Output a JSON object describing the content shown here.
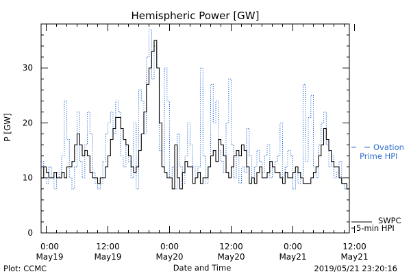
{
  "chart_data": {
    "type": "line",
    "title": "Hemispheric Power [GW]",
    "xlabel": "Date and Time",
    "ylabel": "P [GW]",
    "ylim": [
      0,
      38
    ],
    "xlim_hours": [
      -1,
      59
    ],
    "yticks": [
      0,
      10,
      20,
      30
    ],
    "xticks": [
      {
        "hour": 0,
        "time": "0:00",
        "date": "May19"
      },
      {
        "hour": 12,
        "time": "12:00",
        "date": "May19"
      },
      {
        "hour": 24,
        "time": "0:00",
        "date": "May20"
      },
      {
        "hour": 36,
        "time": "12:00",
        "date": "May20"
      },
      {
        "hour": 48,
        "time": "0:00",
        "date": "May21"
      },
      {
        "hour": 60,
        "time": "12:00",
        "date": "May21"
      }
    ],
    "series": [
      {
        "name": "SWPC 5-min HPI",
        "legend_lines": [
          "SWPC",
          "5-min HPI"
        ],
        "color": "#000000",
        "style": "solid",
        "x": [
          -1,
          -0.5,
          0,
          0.5,
          1,
          1.5,
          2,
          2.5,
          3,
          3.5,
          4,
          4.5,
          5,
          5.5,
          6,
          6.5,
          7,
          7.5,
          8,
          8.5,
          9,
          9.5,
          10,
          10.5,
          11,
          11.5,
          12,
          12.5,
          13,
          13.5,
          14,
          14.5,
          15,
          15.5,
          16,
          16.5,
          17,
          17.5,
          18,
          18.5,
          19,
          19.5,
          20,
          20.5,
          21,
          21.5,
          22,
          22.5,
          23,
          23.5,
          24,
          24.5,
          25,
          25.5,
          26,
          26.5,
          27,
          27.5,
          28,
          28.5,
          29,
          29.5,
          30,
          30.5,
          31,
          31.5,
          32,
          32.5,
          33,
          33.5,
          34,
          34.5,
          35,
          35.5,
          36,
          36.5,
          37,
          37.5,
          38,
          38.5,
          39,
          39.5,
          40,
          40.5,
          41,
          41.5,
          42,
          42.5,
          43,
          43.5,
          44,
          44.5,
          45,
          45.5,
          46,
          46.5,
          47,
          47.5,
          48,
          48.5,
          49,
          49.5,
          50,
          50.5,
          51,
          51.5,
          52,
          52.5,
          53,
          53.5,
          54,
          54.5,
          55,
          55.5,
          56,
          56.5,
          57,
          57.5,
          58,
          58.5,
          59
        ],
        "values": [
          10,
          12,
          11,
          10,
          10,
          11,
          10,
          10,
          11,
          10,
          12,
          12,
          13,
          16,
          18,
          16,
          14,
          15,
          14,
          11,
          10,
          10,
          9,
          10,
          10,
          12,
          14,
          17,
          19,
          21,
          21,
          19,
          17,
          16,
          14,
          12,
          11,
          12,
          15,
          18,
          22,
          27,
          30,
          33,
          35,
          30,
          20,
          12,
          11,
          10,
          10,
          8,
          16,
          10,
          8,
          11,
          13,
          12,
          12,
          9,
          10,
          11,
          9,
          10,
          10,
          12,
          14,
          15,
          13,
          17,
          16,
          14,
          11,
          10,
          12,
          14,
          15,
          14,
          16,
          15,
          12,
          9,
          10,
          9,
          11,
          12,
          10,
          10,
          11,
          13,
          12,
          11,
          11,
          10,
          9,
          11,
          10,
          10,
          11,
          12,
          11,
          10,
          9,
          9,
          9,
          10,
          11,
          12,
          14,
          16,
          19,
          17,
          15,
          13,
          12,
          12,
          10,
          9,
          9,
          8,
          8
        ],
        "end_label": "~8"
      },
      {
        "name": "Ovation Prime HPI",
        "legend_lines": [
          "Ovation",
          "Prime HPI"
        ],
        "color": "#2f6fd0",
        "style": "dotted",
        "x": [
          -1,
          -0.5,
          0,
          0.5,
          1,
          1.5,
          2,
          2.5,
          3,
          3.5,
          4,
          4.5,
          5,
          5.5,
          6,
          6.5,
          7,
          7.5,
          8,
          8.5,
          9,
          9.5,
          10,
          10.5,
          11,
          11.5,
          12,
          12.5,
          13,
          13.5,
          14,
          14.5,
          15,
          15.5,
          16,
          16.5,
          17,
          17.5,
          18,
          18.5,
          19,
          19.5,
          20,
          20.5,
          21,
          21.5,
          22,
          22.5,
          23,
          23.5,
          24,
          24.5,
          25,
          25.5,
          26,
          26.5,
          27,
          27.5,
          28,
          28.5,
          29,
          29.5,
          30,
          30.5,
          31,
          31.5,
          32,
          32.5,
          33,
          33.5,
          34,
          34.5,
          35,
          35.5,
          36,
          36.5,
          37,
          37.5,
          38,
          38.5,
          39,
          39.5,
          40,
          40.5,
          41,
          41.5,
          42,
          42.5,
          43,
          43.5,
          44,
          44.5,
          45,
          45.5,
          46,
          46.5,
          47,
          47.5,
          48,
          48.5,
          49,
          49.5,
          50,
          50.5,
          51,
          51.5,
          52,
          52.5,
          53,
          53.5,
          54,
          54.5,
          55,
          55.5,
          56,
          56.5,
          57,
          57.5,
          58,
          58.5,
          59
        ],
        "values": [
          13,
          10,
          9,
          12,
          10,
          8,
          11,
          10,
          14,
          24,
          17,
          10,
          8,
          12,
          22,
          13,
          10,
          16,
          22,
          18,
          11,
          9,
          8,
          9,
          13,
          18,
          20,
          22,
          18,
          24,
          22,
          14,
          12,
          16,
          13,
          10,
          20,
          8,
          26,
          24,
          18,
          32,
          37,
          28,
          34,
          30,
          15,
          12,
          30,
          24,
          10,
          12,
          8,
          18,
          12,
          9,
          14,
          20,
          16,
          12,
          10,
          12,
          30,
          14,
          9,
          12,
          27,
          20,
          24,
          15,
          13,
          11,
          20,
          28,
          16,
          10,
          14,
          9,
          12,
          11,
          19,
          14,
          10,
          12,
          15,
          13,
          11,
          14,
          16,
          10,
          12,
          13,
          14,
          20,
          10,
          12,
          15,
          14,
          8,
          11,
          9,
          10,
          27,
          13,
          21,
          25,
          12,
          10,
          16,
          20,
          22,
          16,
          12,
          14,
          10,
          11,
          13,
          9,
          8,
          8,
          8
        ]
      }
    ],
    "footer_left": "Plot: CCMC",
    "footer_right": "2019/05/21 23:20:16"
  }
}
